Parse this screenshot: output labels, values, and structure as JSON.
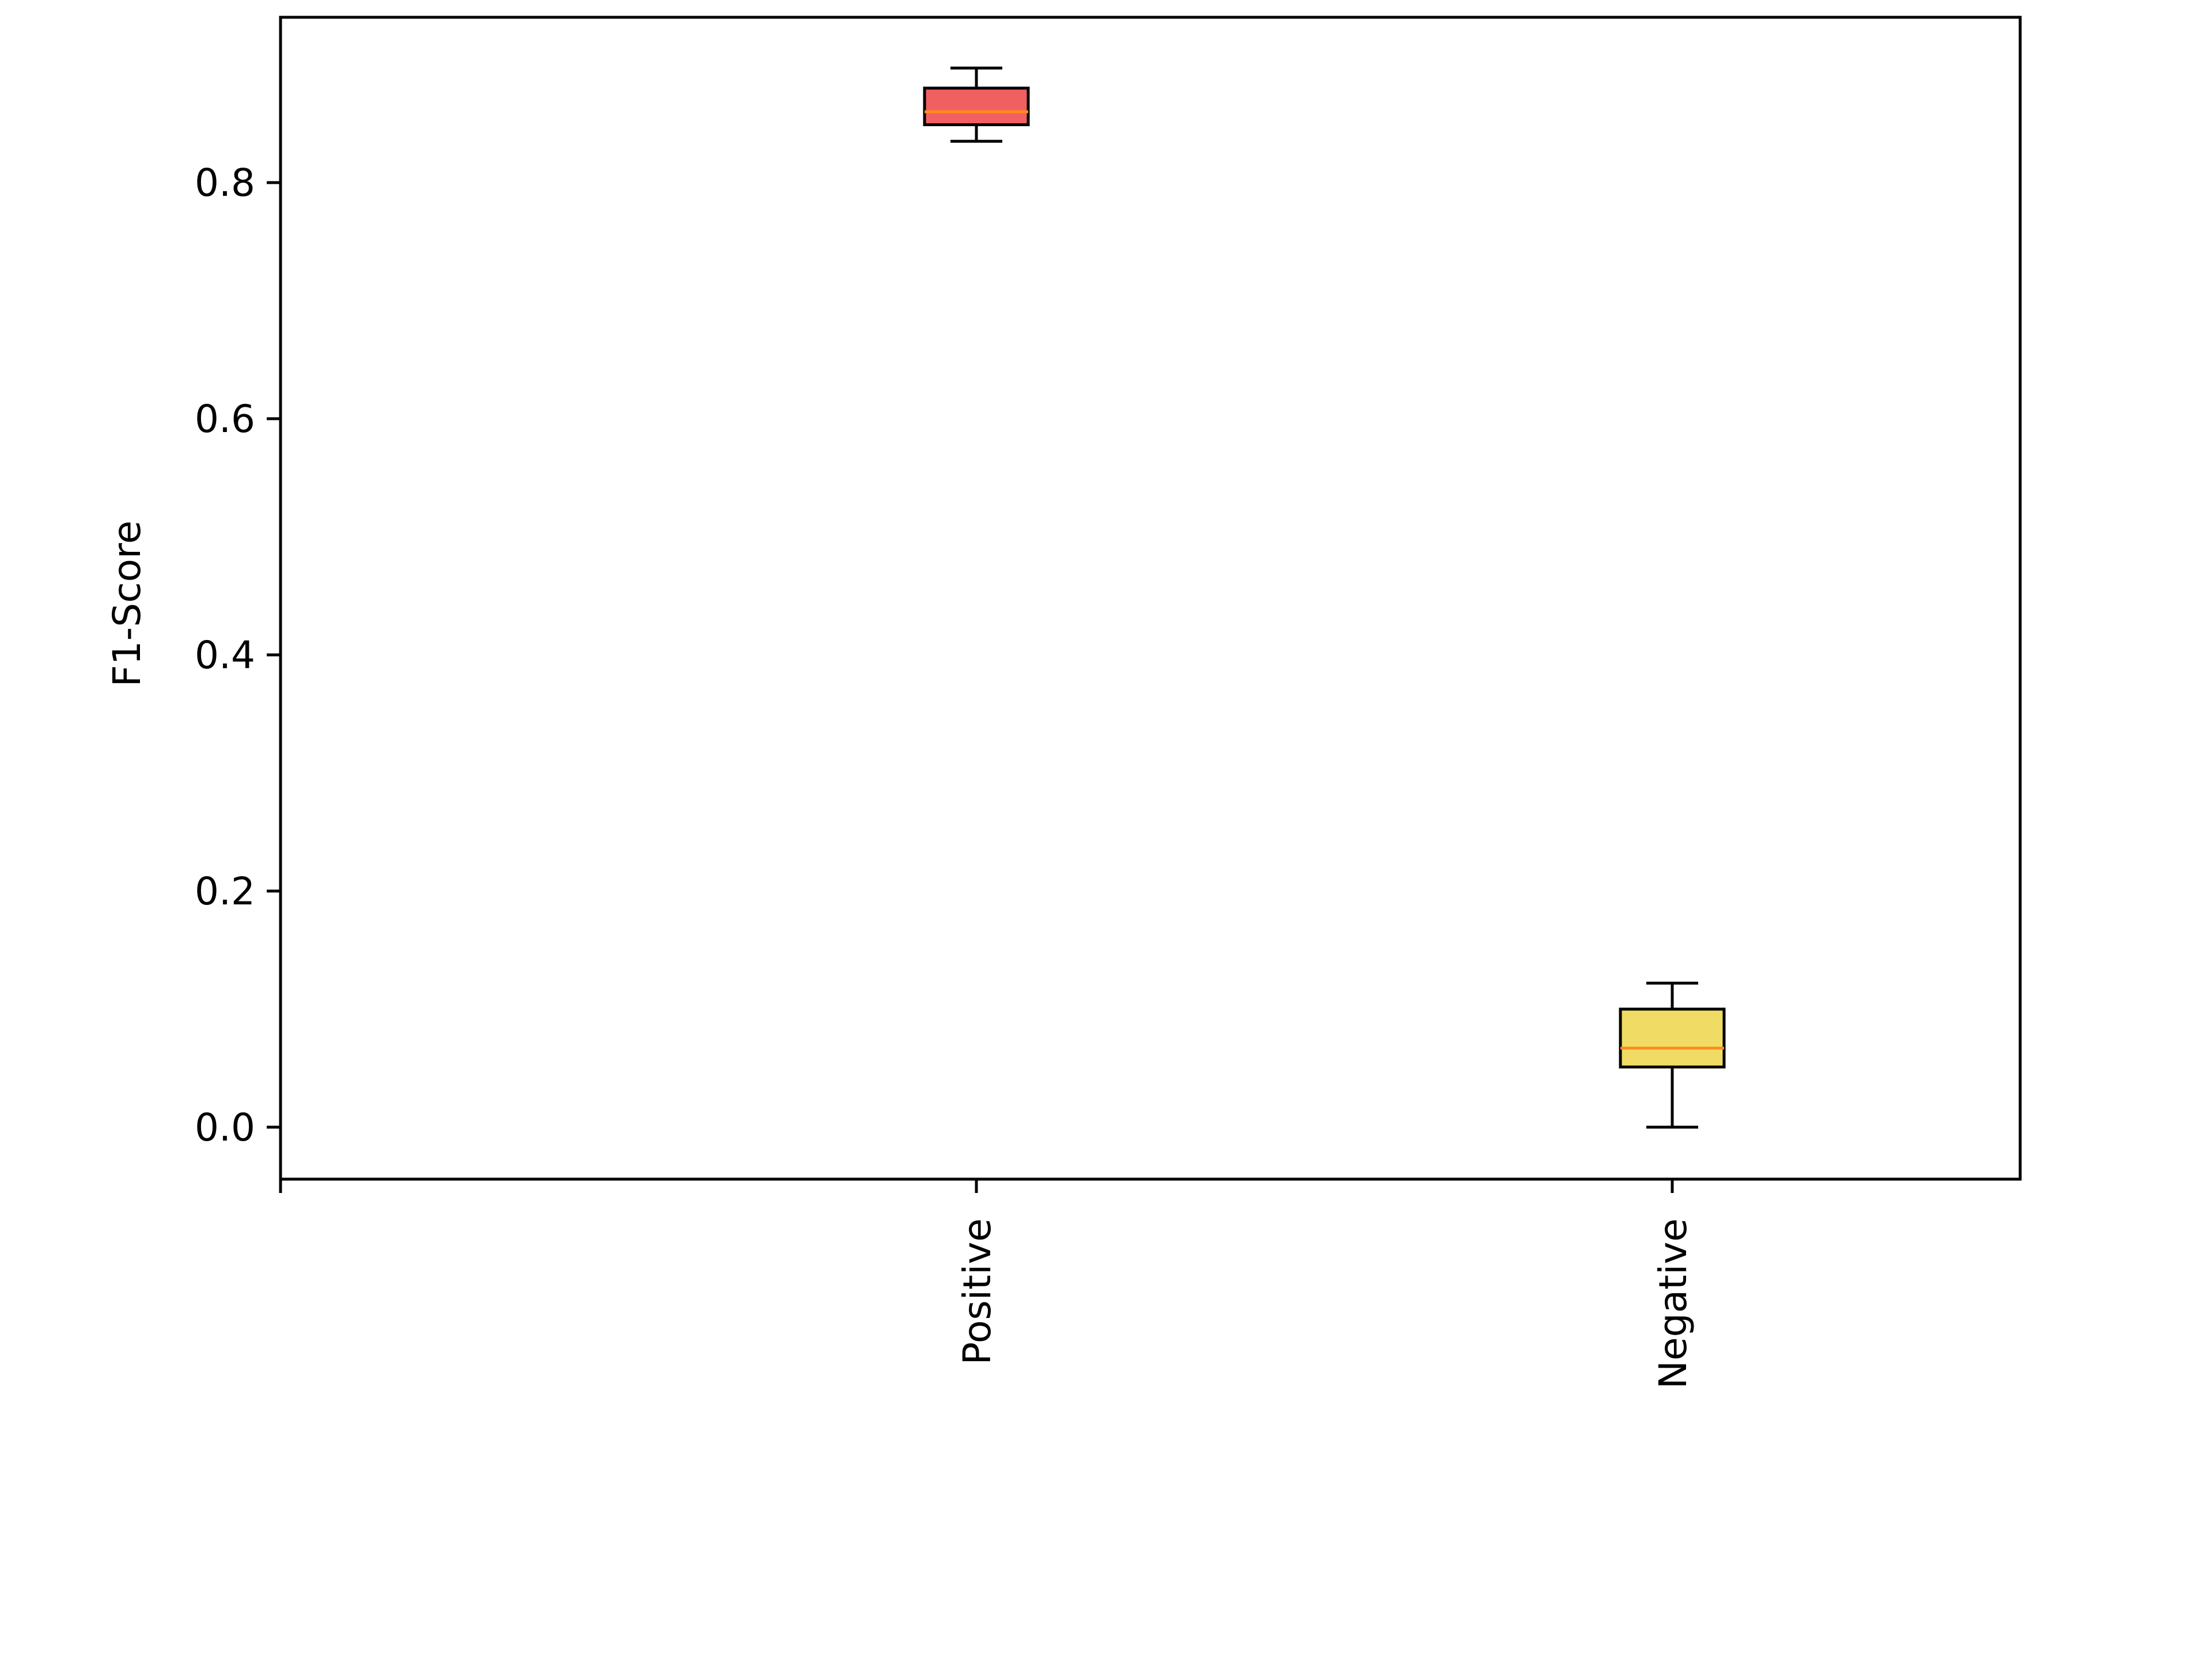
{
  "chart_data": {
    "type": "box",
    "title": "",
    "xlabel": "",
    "ylabel": "F1-Score",
    "categories": [
      "Positive",
      "Negative"
    ],
    "boxes": [
      {
        "category": "Positive",
        "whisker_low": 0.835,
        "q1": 0.849,
        "median": 0.86,
        "q3": 0.88,
        "whisker_high": 0.897,
        "color": "#f06060"
      },
      {
        "category": "Negative",
        "whisker_low": 0.0,
        "q1": 0.051,
        "median": 0.067,
        "q3": 0.1,
        "whisker_high": 0.122,
        "color": "#f0dc64"
      }
    ],
    "median_color": "#ff8c1a",
    "ylim": [
      -0.044,
      0.94
    ],
    "yticks": [
      0.0,
      0.2,
      0.4,
      0.6,
      0.8
    ],
    "ytick_labels": [
      "0.0",
      "0.2",
      "0.4",
      "0.6",
      "0.8"
    ],
    "x_tick_rotation": "vertical",
    "grid": false,
    "legend": "none"
  }
}
